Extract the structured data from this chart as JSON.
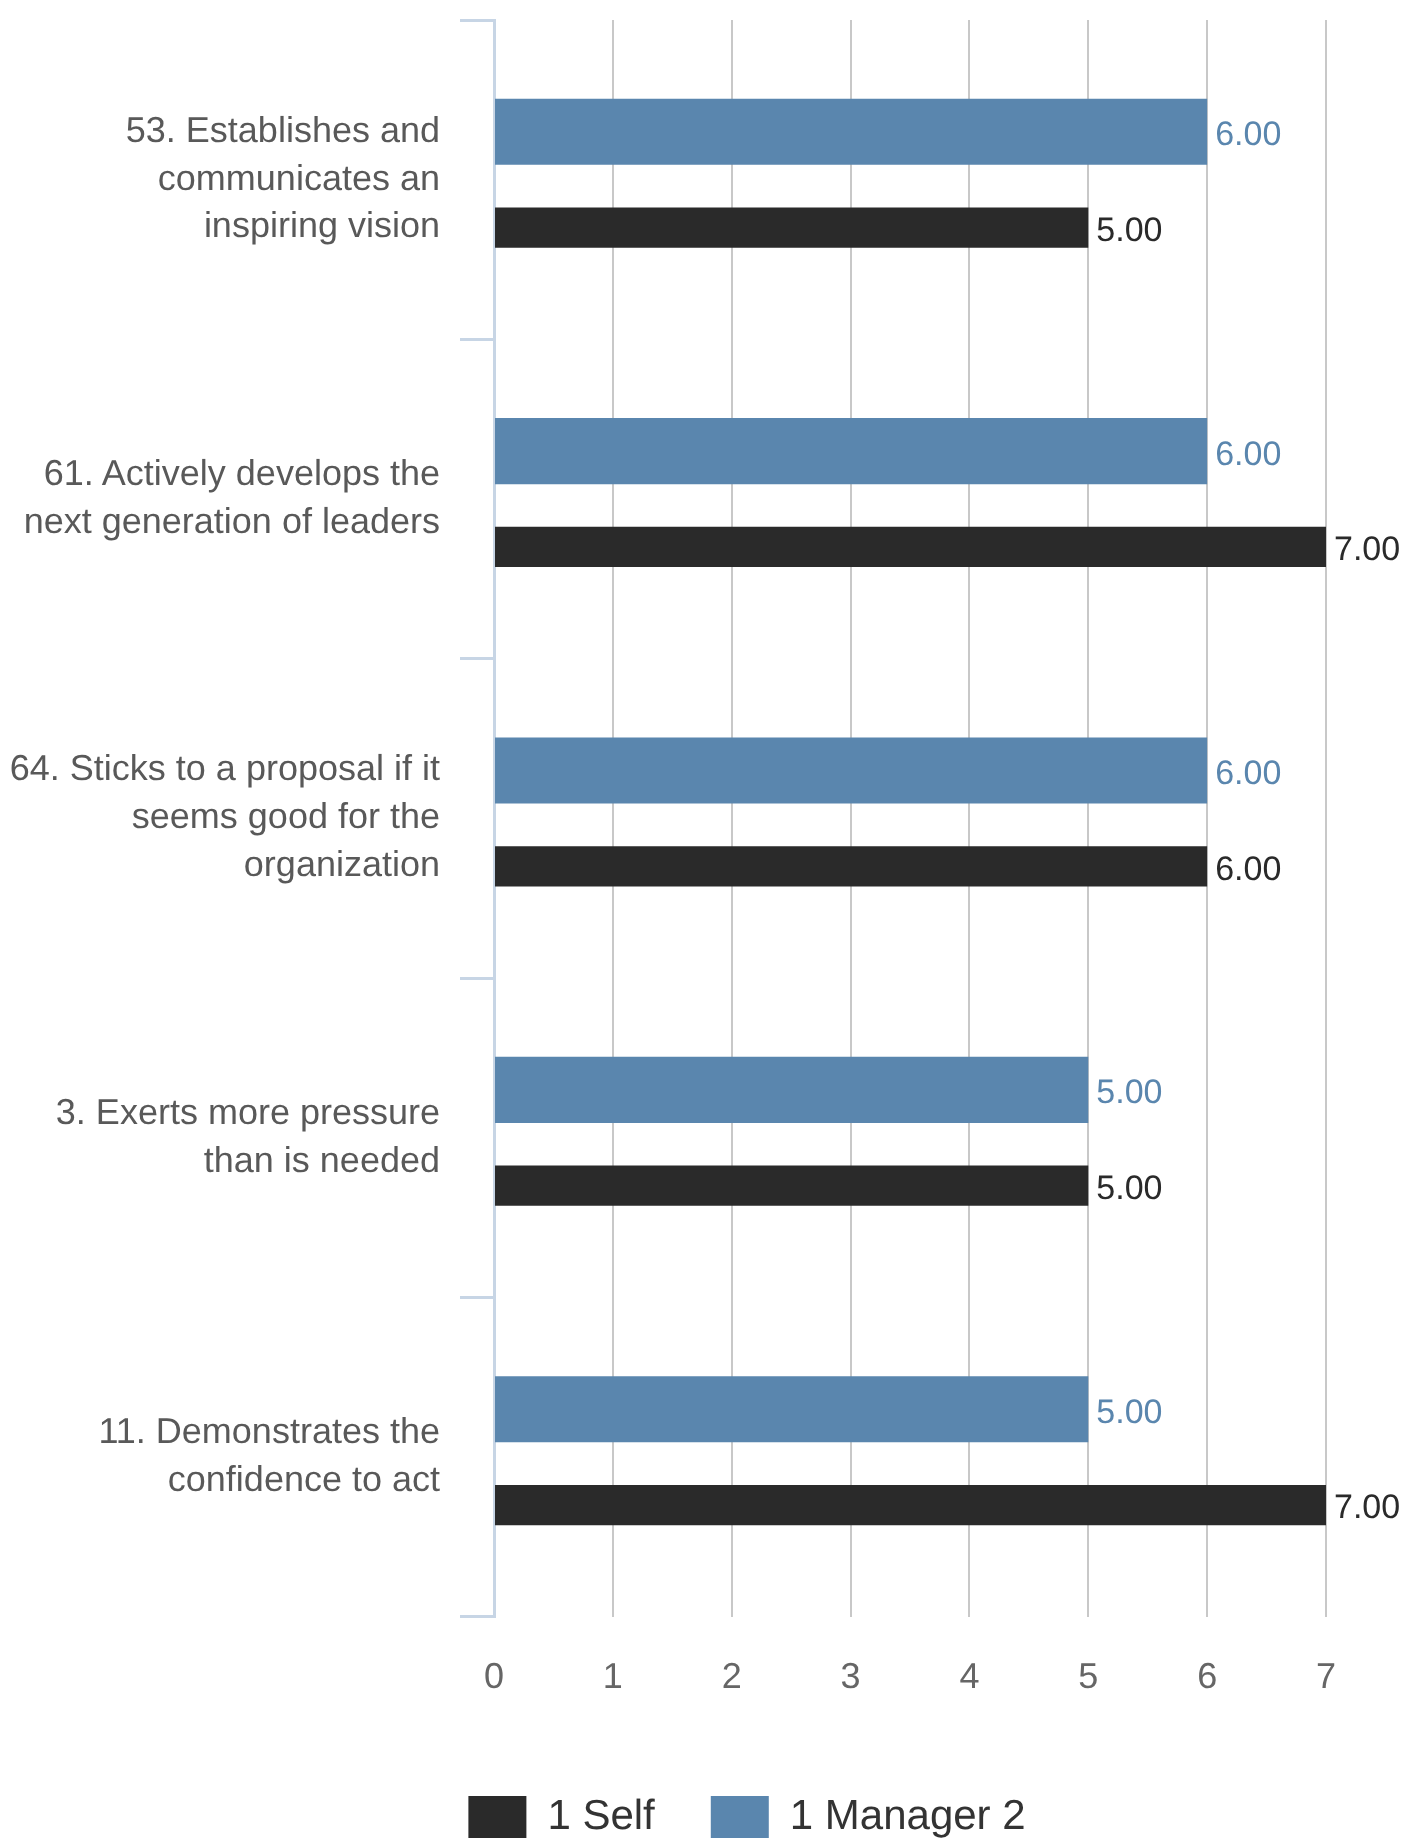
{
  "chart_data": {
    "type": "bar",
    "orientation": "horizontal",
    "categories": [
      "53. Establishes and\ncommunicates an\ninspiring vision",
      "61. Actively develops the\nnext generation of leaders",
      "64. Sticks to a proposal if it\nseems good for the\norganization",
      "3. Exerts more pressure\nthan is needed",
      "11. Demonstrates the\nconfidence to act"
    ],
    "series": [
      {
        "name": "1 Manager 2",
        "color": "#5a86ae",
        "values": [
          6,
          6,
          6,
          5,
          5
        ],
        "value_labels": [
          "6.00",
          "6.00",
          "6.00",
          "5.00",
          "5.00"
        ]
      },
      {
        "name": "1 Self",
        "color": "#2a2a2a",
        "values": [
          5,
          7,
          6,
          5,
          7
        ],
        "value_labels": [
          "5.00",
          "7.00",
          "6.00",
          "5.00",
          "7.00"
        ]
      }
    ],
    "xlim": [
      0,
      7
    ],
    "xticks": [
      0,
      1,
      2,
      3,
      4,
      5,
      6,
      7
    ],
    "grid": "x",
    "legend": "bottom"
  }
}
